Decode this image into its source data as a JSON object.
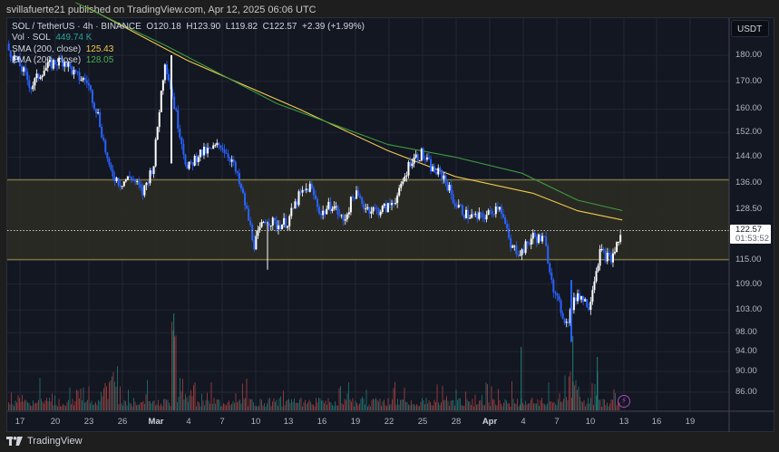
{
  "publish_bar": "svillafuerte21 published on TradingView.com, Apr 12, 2025 06:06 UTC",
  "legend": {
    "symbol_line": "SOL / TetherUS · 4h · BINANCE",
    "ohlc": {
      "open": "O120.18",
      "high": "H123.90",
      "low": "L119.82",
      "close": "C122.57",
      "change": "+2.39 (+1.99%)"
    },
    "volume_label": "Vol · SOL",
    "volume_value": "449.74 K",
    "sma_label": "SMA (200, close)",
    "sma_value": "125.43",
    "ema_label": "EMA (200, close)",
    "ema_value": "128.05"
  },
  "currency_button": "USDT",
  "last_price": {
    "price": "122.57",
    "countdown": "01:53:52"
  },
  "footer": {
    "brand": "TradingView"
  },
  "colors": {
    "background": "#131722",
    "candle_up": "#ffffff",
    "candle_down": "#2962ff",
    "volume_up": "#26a69a",
    "volume_down": "#ef5350",
    "sma": "#f2c94c",
    "ema": "#3d9a3d",
    "zone_fill": "#2a2a25",
    "zone_border": "#7a7340"
  },
  "chart_data": {
    "type": "candlestick",
    "title": "SOL / TetherUS · 4h · BINANCE",
    "xlabel": "",
    "ylabel": "USDT",
    "y_scale": "log",
    "ylim": [
      82,
      200
    ],
    "y_ticks": [
      180.0,
      170.0,
      160.0,
      152.0,
      144.0,
      136.0,
      128.5,
      122.57,
      115.0,
      109.0,
      103.0,
      98.0,
      94.0,
      90.0,
      86.0
    ],
    "x_ticks": [
      "17",
      "20",
      "23",
      "26",
      "Mar",
      "4",
      "7",
      "10",
      "13",
      "16",
      "19",
      "22",
      "25",
      "28",
      "Apr",
      "4",
      "7",
      "10",
      "13",
      "16",
      "19"
    ],
    "grid": true,
    "zone": {
      "top": 137,
      "bottom": 115,
      "label": "support/resistance range"
    },
    "last_close": 122.57,
    "price_path": [
      {
        "x": "Feb 15",
        "close": 190
      },
      {
        "x": "Feb 16",
        "close": 182
      },
      {
        "x": "Feb 17",
        "close": 176
      },
      {
        "x": "Feb 18",
        "close": 168
      },
      {
        "x": "Feb 19",
        "close": 174
      },
      {
        "x": "Feb 20",
        "close": 177
      },
      {
        "x": "Feb 21",
        "close": 178
      },
      {
        "x": "Feb 22",
        "close": 172
      },
      {
        "x": "Feb 23",
        "close": 170
      },
      {
        "x": "Feb 24",
        "close": 158
      },
      {
        "x": "Feb 25",
        "close": 140
      },
      {
        "x": "Feb 26",
        "close": 136
      },
      {
        "x": "Feb 27",
        "close": 138
      },
      {
        "x": "Feb 28",
        "close": 133
      },
      {
        "x": "Mar 1",
        "close": 142
      },
      {
        "x": "Mar 2",
        "close": 178
      },
      {
        "x": "Mar 3",
        "close": 158
      },
      {
        "x": "Mar 4",
        "close": 140
      },
      {
        "x": "Mar 5",
        "close": 145
      },
      {
        "x": "Mar 6",
        "close": 146
      },
      {
        "x": "Mar 7",
        "close": 148
      },
      {
        "x": "Mar 8",
        "close": 143
      },
      {
        "x": "Mar 9",
        "close": 132
      },
      {
        "x": "Mar 10",
        "close": 119
      },
      {
        "x": "Mar 11",
        "close": 126
      },
      {
        "x": "Mar 12",
        "close": 124
      },
      {
        "x": "Mar 13",
        "close": 125
      },
      {
        "x": "Mar 14",
        "close": 132
      },
      {
        "x": "Mar 15",
        "close": 135
      },
      {
        "x": "Mar 16",
        "close": 127
      },
      {
        "x": "Mar 17",
        "close": 130
      },
      {
        "x": "Mar 18",
        "close": 125
      },
      {
        "x": "Mar 19",
        "close": 133
      },
      {
        "x": "Mar 20",
        "close": 129
      },
      {
        "x": "Mar 21",
        "close": 128
      },
      {
        "x": "Mar 22",
        "close": 129
      },
      {
        "x": "Mar 23",
        "close": 133
      },
      {
        "x": "Mar 24",
        "close": 143
      },
      {
        "x": "Mar 25",
        "close": 145
      },
      {
        "x": "Mar 26",
        "close": 140
      },
      {
        "x": "Mar 27",
        "close": 138
      },
      {
        "x": "Mar 28",
        "close": 130
      },
      {
        "x": "Mar 29",
        "close": 127
      },
      {
        "x": "Mar 30",
        "close": 126
      },
      {
        "x": "Mar 31",
        "close": 127
      },
      {
        "x": "Apr 1",
        "close": 130
      },
      {
        "x": "Apr 2",
        "close": 118
      },
      {
        "x": "Apr 3",
        "close": 117
      },
      {
        "x": "Apr 4",
        "close": 121
      },
      {
        "x": "Apr 5",
        "close": 120
      },
      {
        "x": "Apr 6",
        "close": 106
      },
      {
        "x": "Apr 7",
        "close": 100
      },
      {
        "x": "Apr 8",
        "close": 107
      },
      {
        "x": "Apr 9",
        "close": 104
      },
      {
        "x": "Apr 10",
        "close": 117
      },
      {
        "x": "Apr 11",
        "close": 115
      },
      {
        "x": "Apr 12",
        "close": 122.57
      }
    ],
    "sma_200": [
      {
        "x": "Feb 15",
        "value": 196
      },
      {
        "x": "Mar 2",
        "value": 180
      },
      {
        "x": "Mar 16",
        "value": 162
      },
      {
        "x": "Mar 25",
        "value": 142
      },
      {
        "x": "Apr 1",
        "value": 135
      },
      {
        "x": "Apr 12",
        "value": 125.43
      }
    ],
    "ema_200": [
      {
        "x": "Feb 15",
        "value": 200
      },
      {
        "x": "Mar 2",
        "value": 178
      },
      {
        "x": "Mar 16",
        "value": 158
      },
      {
        "x": "Mar 25",
        "value": 146
      },
      {
        "x": "Apr 1",
        "value": 138
      },
      {
        "x": "Apr 12",
        "value": 128.05
      }
    ],
    "volume_peaks": [
      {
        "x": "Mar 2",
        "note": "largest spike"
      },
      {
        "x": "Apr 7",
        "note": "spike"
      },
      {
        "x": "Apr 10",
        "note": "spike"
      }
    ]
  }
}
